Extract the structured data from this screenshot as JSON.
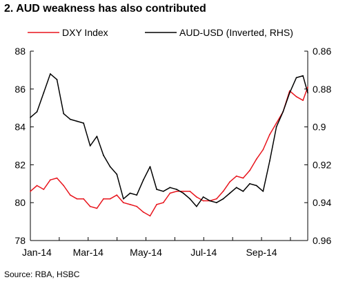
{
  "title": "2.  AUD weakness has also contributed",
  "source": "Source: RBA, HSBC",
  "chart_data": {
    "type": "line",
    "grid": false,
    "legend_position": "top",
    "x_ticks": [
      "Jan-14",
      "Mar-14",
      "May-14",
      "Jul-14",
      "Sep-14"
    ],
    "left_axis": {
      "range": [
        78,
        88
      ],
      "ticks": [
        "78",
        "80",
        "82",
        "84",
        "86",
        "88"
      ]
    },
    "right_axis": {
      "range": [
        0.96,
        0.86
      ],
      "inverted": true,
      "ticks": [
        "0.86",
        "0.88",
        "0.9",
        "0.92",
        "0.94",
        "0.96"
      ]
    },
    "series": [
      {
        "name": "DXY Index",
        "axis": "left",
        "color": "#e8141c",
        "x": [
          "2014-01-01",
          "2014-01-08",
          "2014-01-15",
          "2014-01-22",
          "2014-01-29",
          "2014-02-05",
          "2014-02-12",
          "2014-02-19",
          "2014-02-26",
          "2014-03-05",
          "2014-03-12",
          "2014-03-19",
          "2014-03-26",
          "2014-04-02",
          "2014-04-09",
          "2014-04-16",
          "2014-04-23",
          "2014-04-30",
          "2014-05-07",
          "2014-05-14",
          "2014-05-21",
          "2014-05-28",
          "2014-06-04",
          "2014-06-11",
          "2014-06-18",
          "2014-06-25",
          "2014-07-02",
          "2014-07-09",
          "2014-07-16",
          "2014-07-23",
          "2014-07-30",
          "2014-08-06",
          "2014-08-13",
          "2014-08-20",
          "2014-08-27",
          "2014-09-03",
          "2014-09-10",
          "2014-09-17",
          "2014-09-24",
          "2014-10-01",
          "2014-10-08",
          "2014-10-15",
          "2014-10-20"
        ],
        "values": [
          80.6,
          80.9,
          80.7,
          81.2,
          81.3,
          80.9,
          80.4,
          80.2,
          80.2,
          79.8,
          79.7,
          80.2,
          80.2,
          80.4,
          80.0,
          79.9,
          79.8,
          79.5,
          79.3,
          79.9,
          80.0,
          80.5,
          80.6,
          80.6,
          80.6,
          80.3,
          80.1,
          80.1,
          80.2,
          80.6,
          81.1,
          81.4,
          81.3,
          81.7,
          82.3,
          82.8,
          83.6,
          84.2,
          84.8,
          85.9,
          85.6,
          85.4,
          86.1
        ]
      },
      {
        "name": "AUD-USD (Inverted, RHS)",
        "axis": "right",
        "color": "#000000",
        "x": [
          "2014-01-01",
          "2014-01-08",
          "2014-01-15",
          "2014-01-22",
          "2014-01-29",
          "2014-02-05",
          "2014-02-12",
          "2014-02-19",
          "2014-02-26",
          "2014-03-05",
          "2014-03-12",
          "2014-03-19",
          "2014-03-26",
          "2014-04-02",
          "2014-04-09",
          "2014-04-16",
          "2014-04-23",
          "2014-04-30",
          "2014-05-07",
          "2014-05-14",
          "2014-05-21",
          "2014-05-28",
          "2014-06-04",
          "2014-06-11",
          "2014-06-18",
          "2014-06-25",
          "2014-07-02",
          "2014-07-09",
          "2014-07-16",
          "2014-07-23",
          "2014-07-30",
          "2014-08-06",
          "2014-08-13",
          "2014-08-20",
          "2014-08-27",
          "2014-09-03",
          "2014-09-10",
          "2014-09-17",
          "2014-09-24",
          "2014-10-01",
          "2014-10-08",
          "2014-10-15",
          "2014-10-20"
        ],
        "values": [
          0.895,
          0.892,
          0.882,
          0.872,
          0.875,
          0.893,
          0.896,
          0.897,
          0.898,
          0.91,
          0.905,
          0.915,
          0.921,
          0.925,
          0.938,
          0.935,
          0.936,
          0.928,
          0.921,
          0.933,
          0.934,
          0.932,
          0.933,
          0.935,
          0.938,
          0.942,
          0.937,
          0.939,
          0.94,
          0.938,
          0.935,
          0.932,
          0.934,
          0.93,
          0.931,
          0.934,
          0.918,
          0.9,
          0.892,
          0.882,
          0.874,
          0.873,
          0.882
        ]
      }
    ]
  }
}
